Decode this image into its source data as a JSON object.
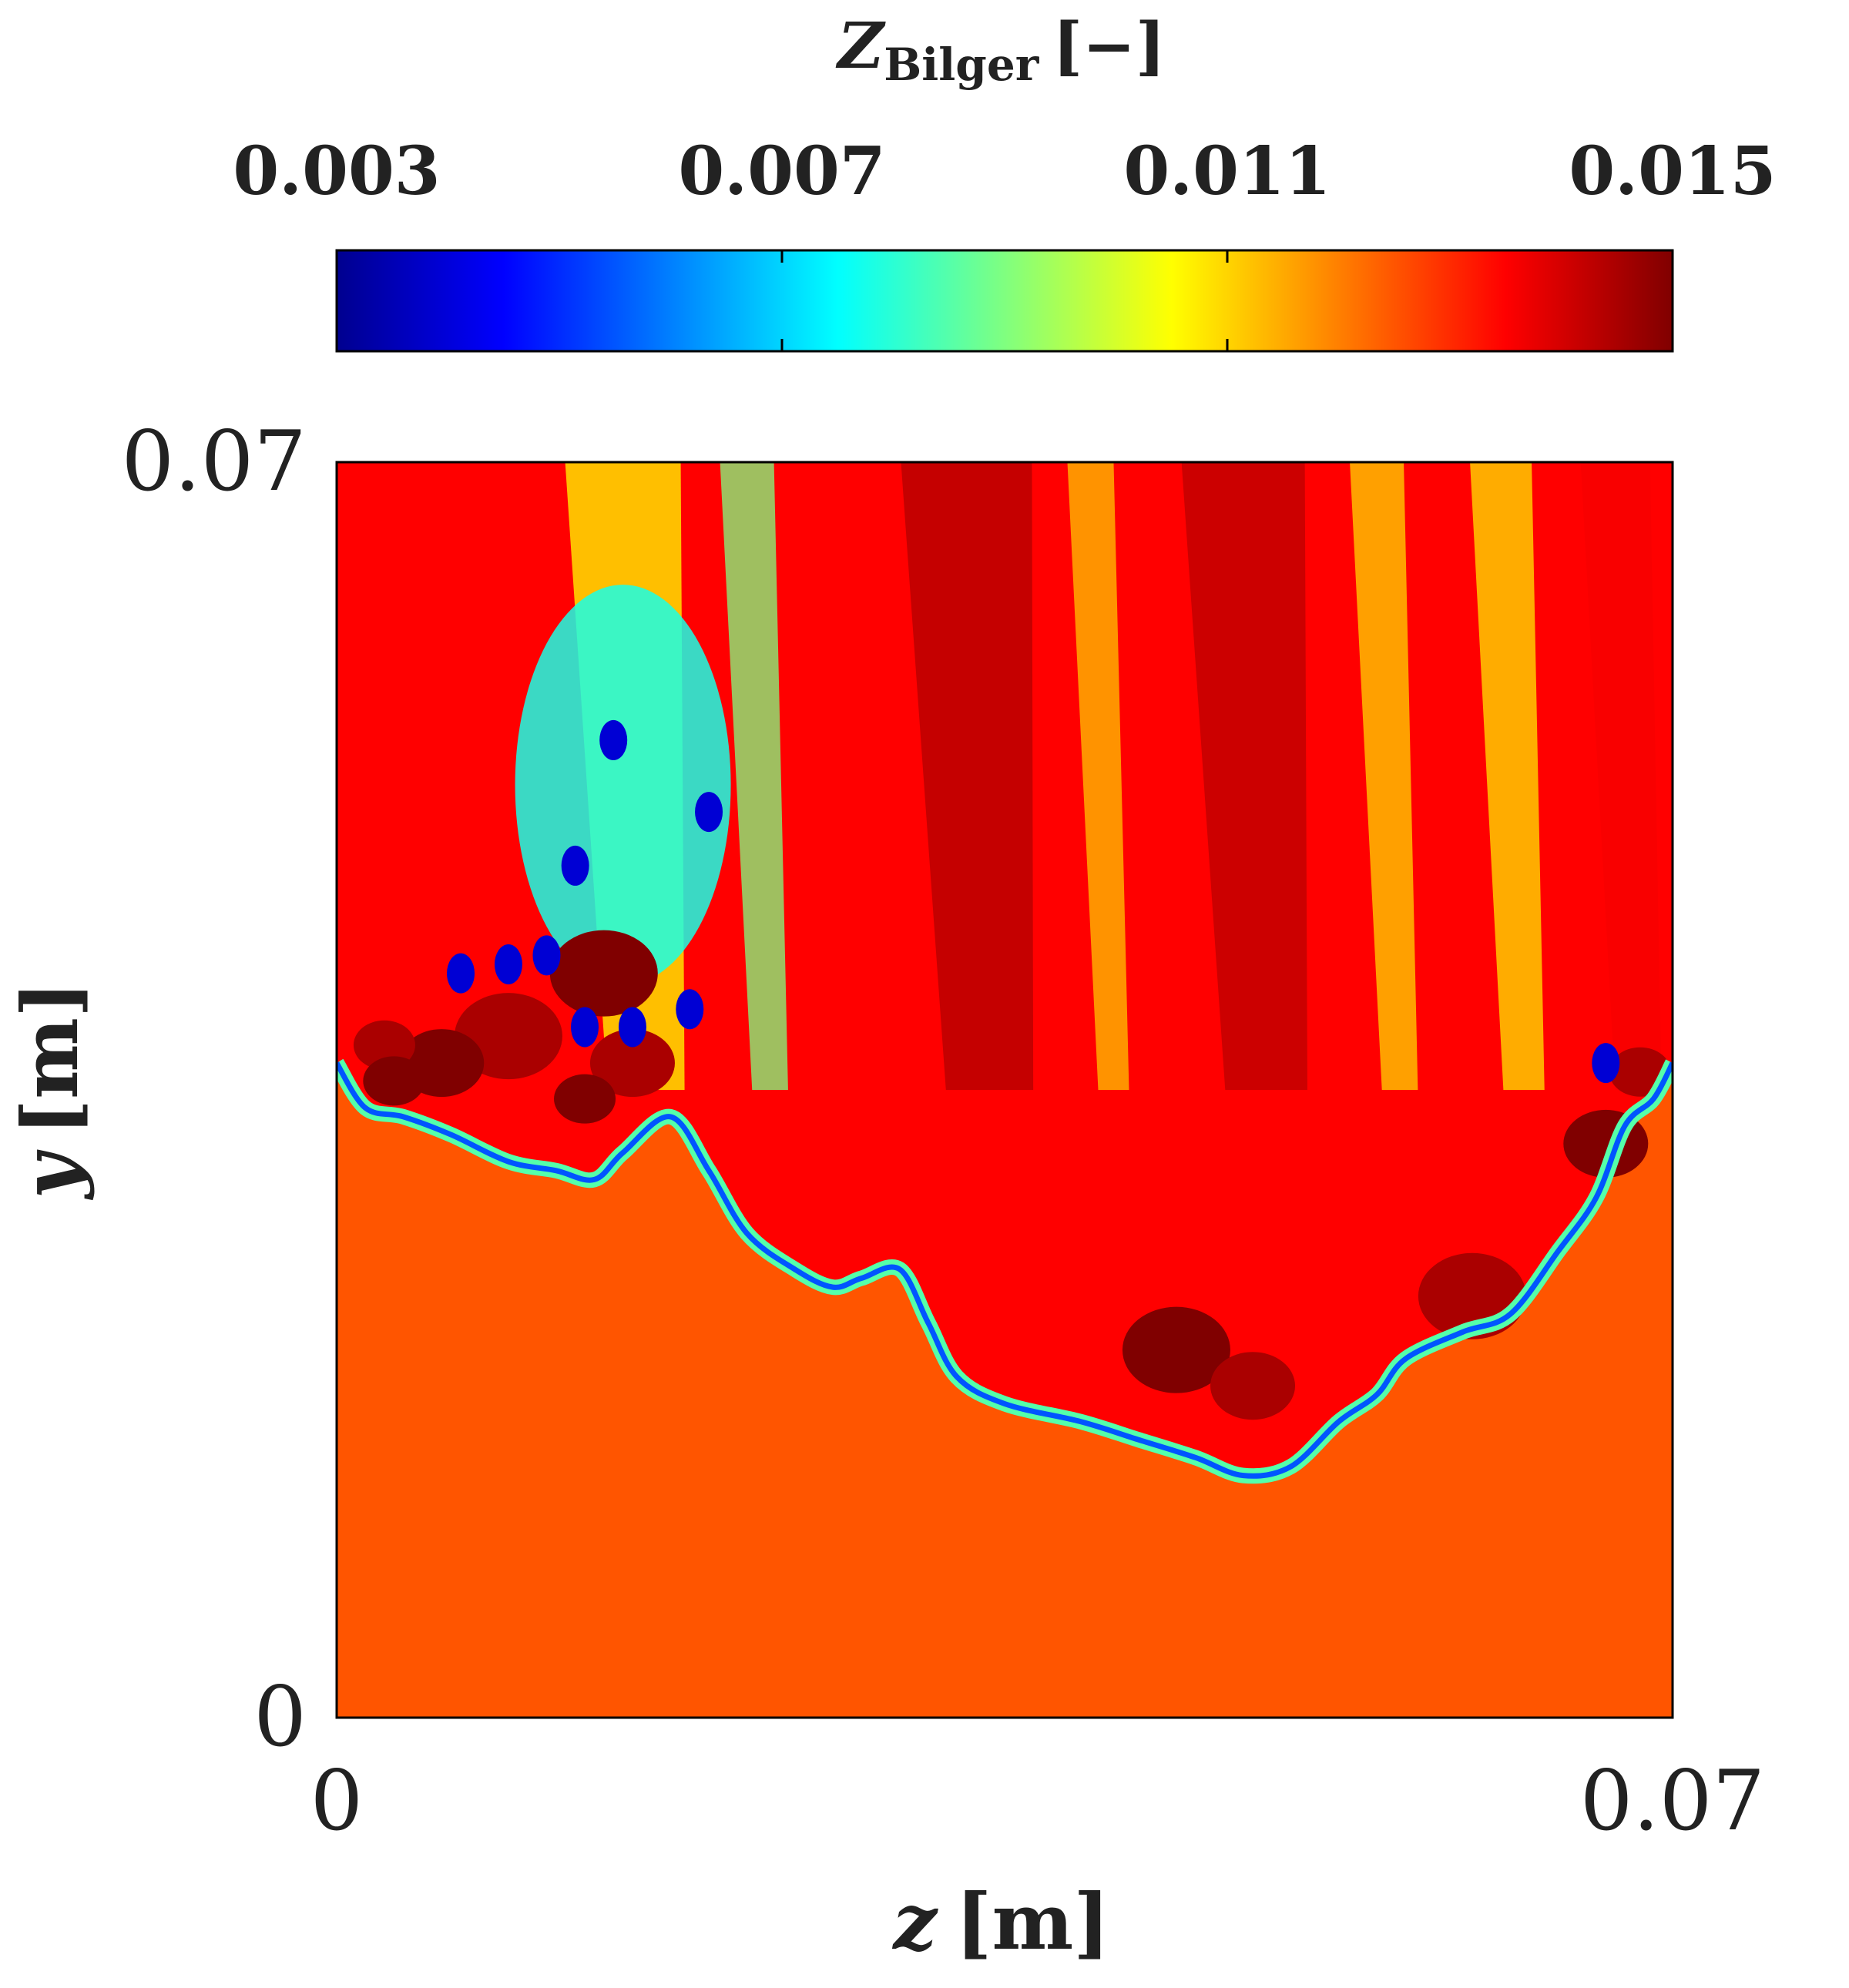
{
  "chart_data": {
    "type": "heatmap",
    "title": "",
    "colorbar": {
      "label_main": "Z",
      "label_subscript": "Bilger",
      "label_unit": "[−]",
      "colormap": "jet",
      "range": [
        0.003,
        0.015
      ],
      "ticks": [
        0.003,
        0.007,
        0.011,
        0.015
      ],
      "tick_labels": [
        "0.003",
        "0.007",
        "0.011",
        "0.015"
      ],
      "position": "top"
    },
    "x_axis": {
      "label_var": "z",
      "label_unit": "[m]",
      "range": [
        0,
        0.07
      ],
      "tick_labels": [
        "0",
        "0.07"
      ]
    },
    "y_axis": {
      "label_var": "y",
      "label_unit": "[m]",
      "range": [
        0,
        0.07
      ],
      "tick_labels": [
        "0",
        "0.07"
      ]
    },
    "field": {
      "unburnt_value": 0.0125,
      "burnt_value": 0.0135,
      "front_min_value": 0.004,
      "pocket_max_value": 0.015,
      "front_profile": [
        [
          0.0,
          0.0365
        ],
        [
          0.0015,
          0.034
        ],
        [
          0.0035,
          0.0335
        ],
        [
          0.006,
          0.0325
        ],
        [
          0.009,
          0.031
        ],
        [
          0.0115,
          0.0305
        ],
        [
          0.0135,
          0.03
        ],
        [
          0.015,
          0.0315
        ],
        [
          0.0175,
          0.0335
        ],
        [
          0.0195,
          0.0305
        ],
        [
          0.0215,
          0.027
        ],
        [
          0.024,
          0.025
        ],
        [
          0.026,
          0.024
        ],
        [
          0.0275,
          0.0245
        ],
        [
          0.0295,
          0.025
        ],
        [
          0.031,
          0.022
        ],
        [
          0.0325,
          0.019
        ],
        [
          0.035,
          0.0175
        ],
        [
          0.039,
          0.0165
        ],
        [
          0.042,
          0.0155
        ],
        [
          0.045,
          0.0145
        ],
        [
          0.0475,
          0.0135
        ],
        [
          0.05,
          0.014
        ],
        [
          0.0525,
          0.0165
        ],
        [
          0.0545,
          0.018
        ],
        [
          0.056,
          0.02
        ],
        [
          0.059,
          0.0215
        ],
        [
          0.0615,
          0.0225
        ],
        [
          0.064,
          0.026
        ],
        [
          0.066,
          0.029
        ],
        [
          0.0675,
          0.033
        ],
        [
          0.069,
          0.0345
        ],
        [
          0.07,
          0.0365
        ]
      ],
      "blue_pockets": [
        [
          0.0145,
          0.0545
        ],
        [
          0.0125,
          0.0475
        ],
        [
          0.011,
          0.0425
        ],
        [
          0.0065,
          0.0415
        ],
        [
          0.009,
          0.042
        ],
        [
          0.0195,
          0.0505
        ],
        [
          0.0185,
          0.0395
        ],
        [
          0.0155,
          0.0385
        ],
        [
          0.013,
          0.0385
        ],
        [
          0.0665,
          0.0365
        ]
      ],
      "red_pockets": [
        [
          0.014,
          0.0415
        ],
        [
          0.0155,
          0.0365
        ],
        [
          0.013,
          0.0345
        ],
        [
          0.009,
          0.038
        ],
        [
          0.0055,
          0.0365
        ],
        [
          0.0025,
          0.0375
        ],
        [
          0.044,
          0.0205
        ],
        [
          0.048,
          0.0185
        ],
        [
          0.003,
          0.0355
        ],
        [
          0.0595,
          0.0235
        ],
        [
          0.0665,
          0.032
        ],
        [
          0.0683,
          0.036
        ]
      ]
    }
  }
}
